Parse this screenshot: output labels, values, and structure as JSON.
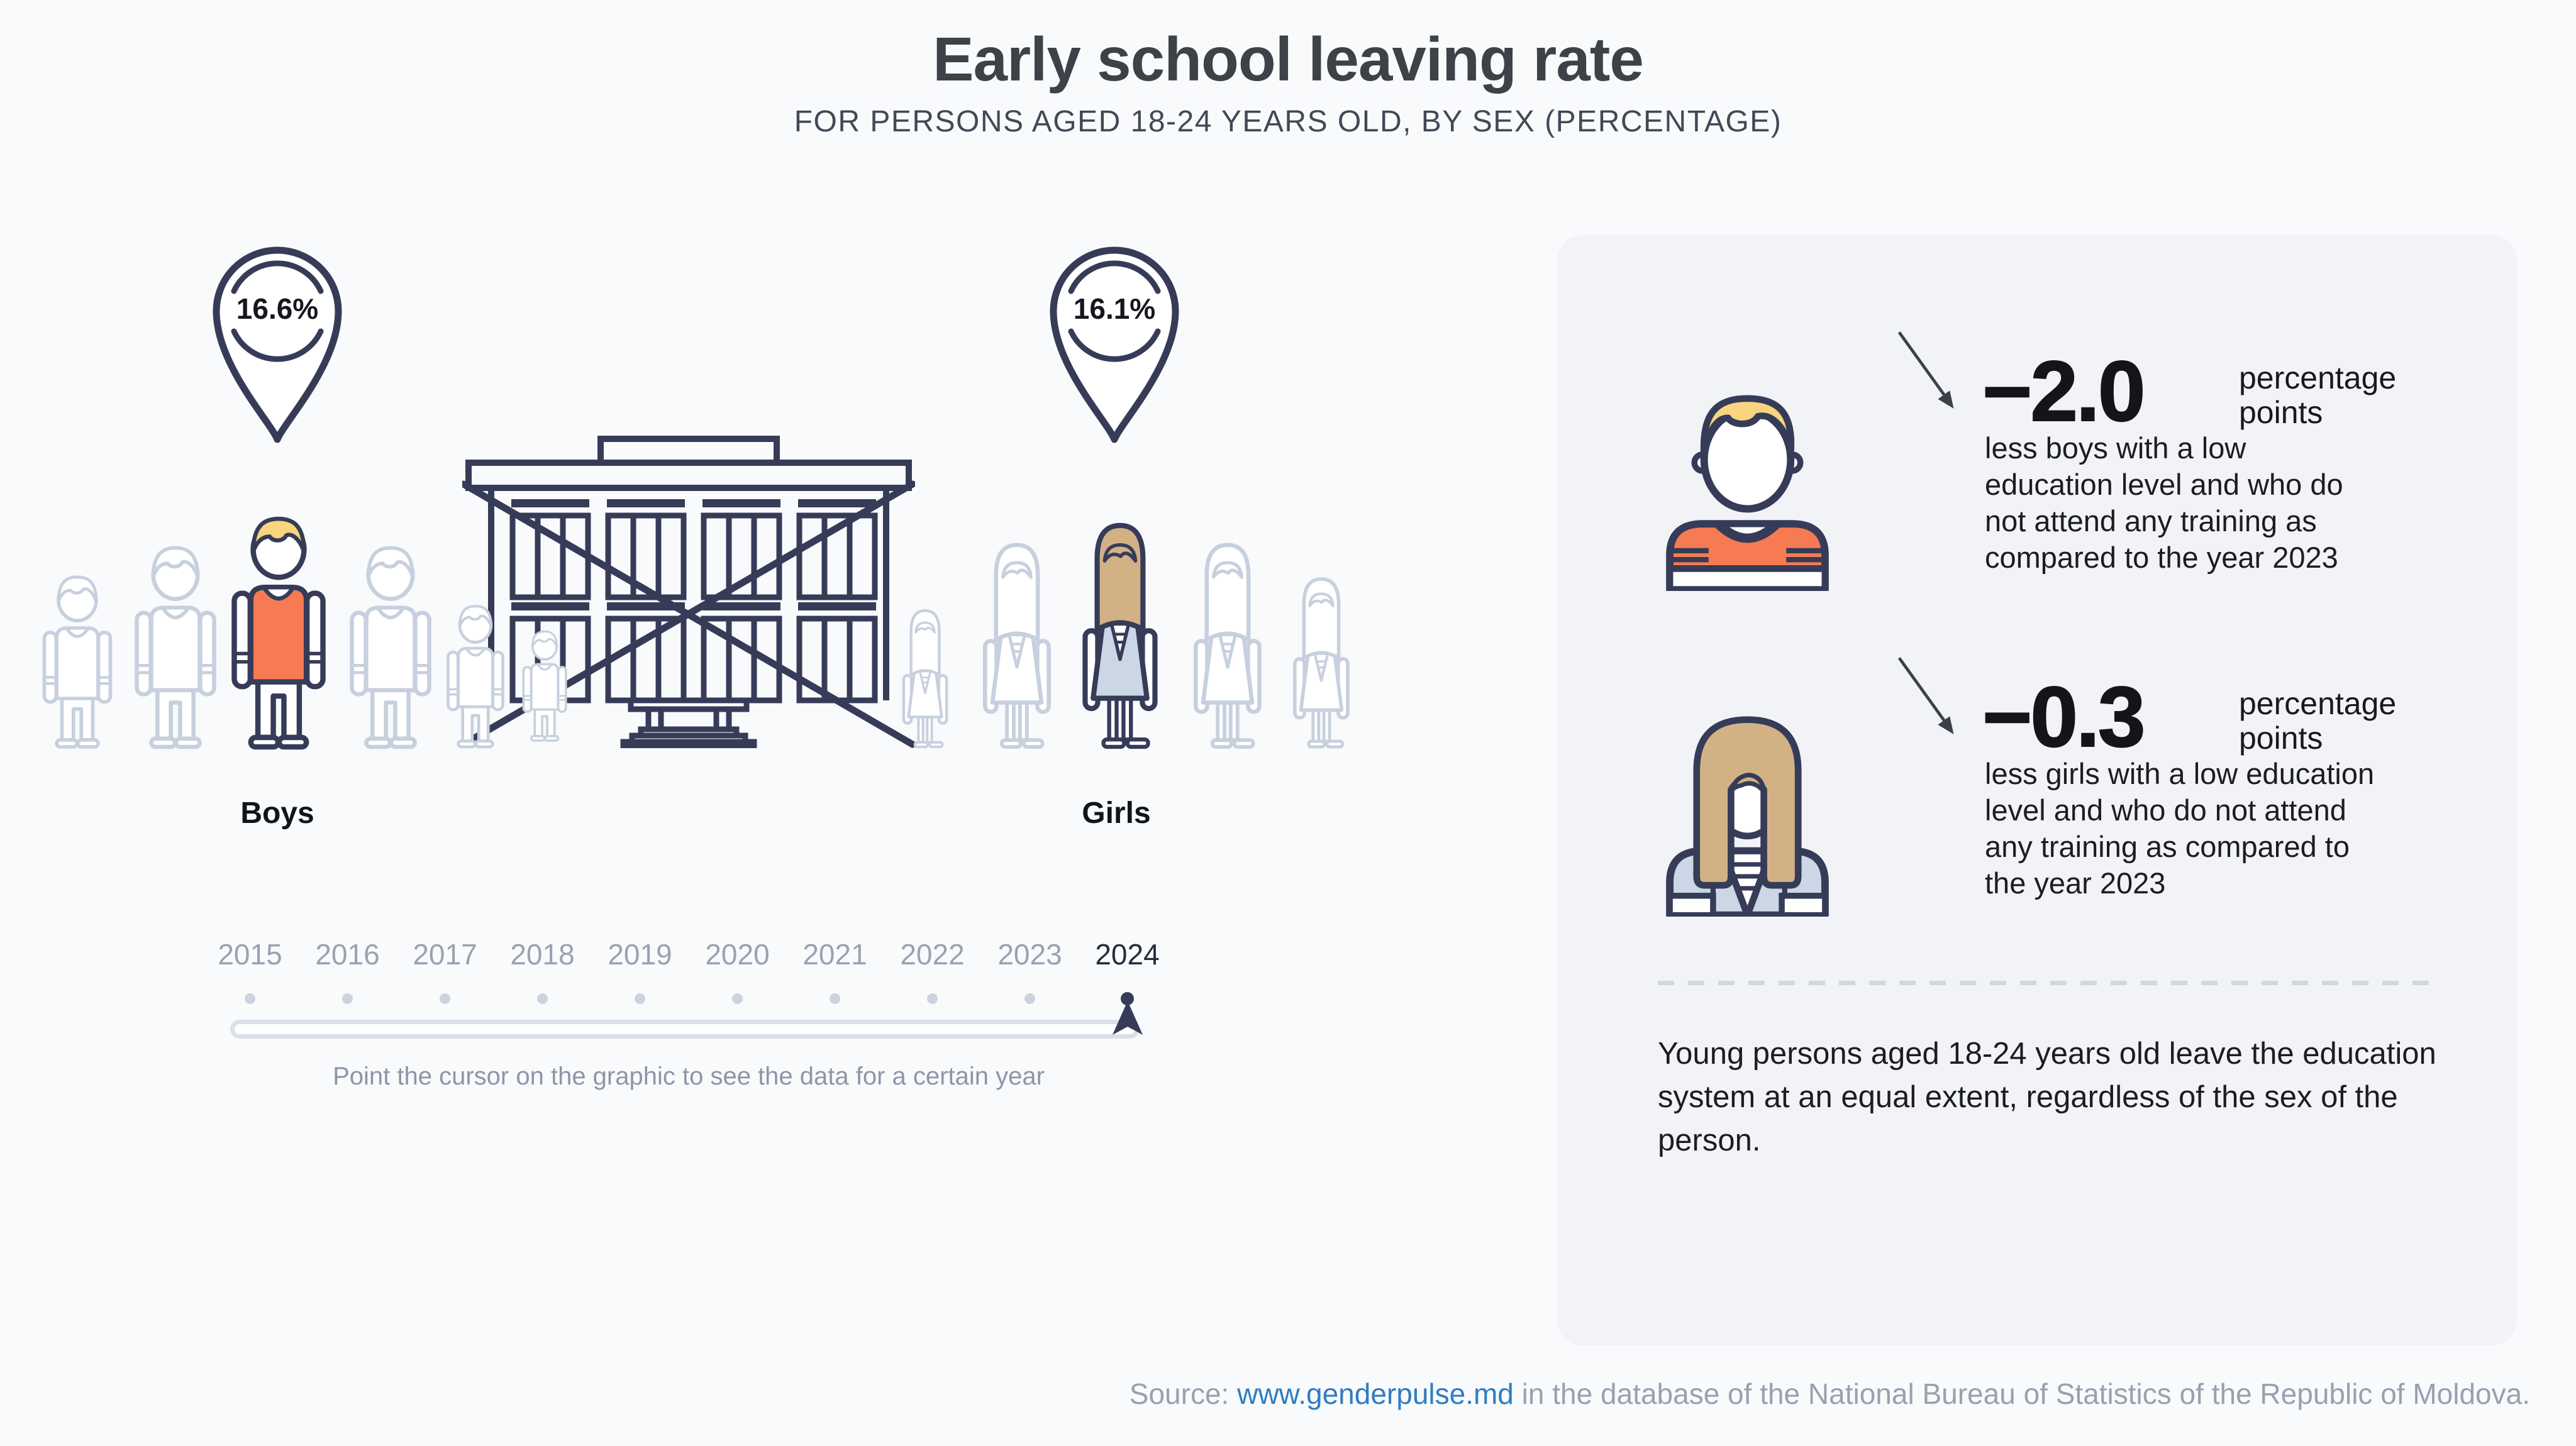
{
  "title": "Early school leaving rate",
  "subtitle": "FOR PERSONS AGED 18-24 YEARS OLD, BY SEX (PERCENTAGE)",
  "markers": {
    "boys": {
      "value": "16.6%",
      "label": "Boys"
    },
    "girls": {
      "value": "16.1%",
      "label": "Girls"
    }
  },
  "timeline": {
    "years": [
      "2015",
      "2016",
      "2017",
      "2018",
      "2019",
      "2020",
      "2021",
      "2022",
      "2023",
      "2024"
    ],
    "selected_year": "2024",
    "hint": "Point the cursor on the graphic to see the data for a certain year"
  },
  "panel": {
    "boys_stat": {
      "value": "−2.0",
      "unit": "percentage points",
      "description": "less boys with a low education level and who do not attend any training as compared to the year 2023"
    },
    "girls_stat": {
      "value": "−0.3",
      "unit": "percentage points",
      "description": "less girls with a low education level and who do not attend any training as compared to the year 2023"
    },
    "note": "Young persons aged 18-24 years old leave the education system at an equal extent, regardless of the sex of the person."
  },
  "footer": {
    "prefix": "Source: ",
    "link": "www.genderpulse.md",
    "suffix": " in the database of the National Bureau of Statistics of the Republic of Moldova."
  },
  "colors": {
    "page-bg": "#f9fafc",
    "panel-bg": "#f1f3f7",
    "navy": "#363c58",
    "outline-gray": "#c7d0de",
    "orange": "#f67b52",
    "blonde": "#f8d57e",
    "tan": "#d2b285",
    "dress-blue": "#cbd7e5",
    "title-ink": "#3d4249",
    "muted": "#8d96a7",
    "year-gray": "#9aa2b1",
    "year-active": "#272c3b",
    "track": "#dbe0e8",
    "dot": "#ccd3de",
    "dash": "#d2d7df",
    "link-blue": "#2f7ec1",
    "arrow-ink": "#3c4048"
  },
  "chart_data": {
    "type": "pictogram",
    "title": "Early school leaving rate",
    "subtitle": "FOR PERSONS AGED 18-24 YEARS OLD, BY SEX (PERCENTAGE)",
    "selected_year": "2024",
    "years_available": [
      2015,
      2016,
      2017,
      2018,
      2019,
      2020,
      2021,
      2022,
      2023,
      2024
    ],
    "series": [
      {
        "name": "Boys",
        "value": 16.6,
        "unit": "%",
        "change_vs_previous_year_pp": -2.0
      },
      {
        "name": "Girls",
        "value": 16.1,
        "unit": "%",
        "change_vs_previous_year_pp": -0.3
      }
    ],
    "legend_position": "none",
    "grid": false
  }
}
